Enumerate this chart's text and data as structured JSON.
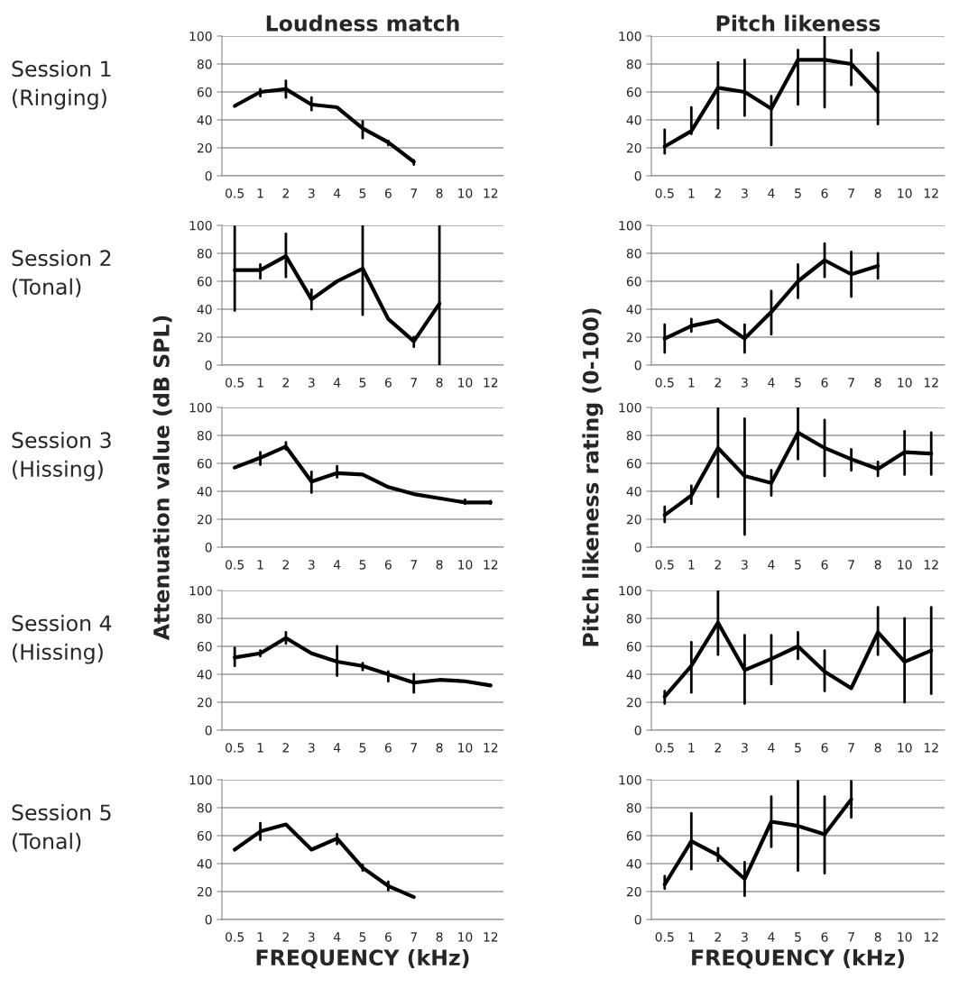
{
  "chart_data": [
    {
      "type": "line",
      "title": "Loudness match",
      "annotations": [
        "Session 1\n(Ringing)"
      ],
      "categories": [
        "0.5",
        "1",
        "2",
        "3",
        "4",
        "5",
        "6",
        "7",
        "8",
        "10",
        "12"
      ],
      "values": [
        50,
        60,
        62,
        51,
        49,
        34,
        24,
        10,
        null,
        null,
        null
      ],
      "errors": [
        null,
        [
          57,
          62
        ],
        [
          56,
          68
        ],
        [
          47,
          56
        ],
        null,
        [
          27,
          39
        ],
        [
          22,
          25
        ],
        [
          8,
          11
        ],
        null,
        null,
        null
      ],
      "ylim": [
        0,
        100
      ],
      "yticks": [
        0,
        20,
        40,
        60,
        80,
        100
      ],
      "grid": "y",
      "color": "#000000"
    },
    {
      "type": "line",
      "title": "Pitch likeness",
      "categories": [
        "0.5",
        "1",
        "2",
        "3",
        "4",
        "5",
        "6",
        "7",
        "8",
        "10",
        "12"
      ],
      "values": [
        21,
        32,
        63,
        60,
        48,
        83,
        83,
        80,
        60,
        null,
        null
      ],
      "errors": [
        [
          16,
          33
        ],
        [
          30,
          49
        ],
        [
          34,
          81
        ],
        [
          43,
          83
        ],
        [
          22,
          57
        ],
        [
          51,
          90
        ],
        [
          49,
          100
        ],
        [
          65,
          90
        ],
        [
          37,
          88
        ],
        null,
        null
      ],
      "ylim": [
        0,
        100
      ],
      "yticks": [
        0,
        20,
        40,
        60,
        80,
        100
      ],
      "grid": "y",
      "color": "#000000"
    },
    {
      "type": "line",
      "annotations": [
        "Session 2\n(Tonal)"
      ],
      "categories": [
        "0.5",
        "1",
        "2",
        "3",
        "4",
        "5",
        "6",
        "7",
        "8",
        "10",
        "12"
      ],
      "values": [
        68,
        68,
        78,
        47,
        60,
        69,
        33,
        17,
        44,
        null,
        null
      ],
      "errors": [
        [
          39,
          99
        ],
        [
          62,
          72
        ],
        [
          63,
          94
        ],
        [
          40,
          54
        ],
        null,
        [
          36,
          100
        ],
        null,
        [
          13,
          20
        ],
        [
          0,
          100
        ],
        null,
        null
      ],
      "ylim": [
        0,
        100
      ],
      "yticks": [
        0,
        20,
        40,
        60,
        80,
        100
      ],
      "grid": "y",
      "color": "#000000"
    },
    {
      "type": "line",
      "categories": [
        "0.5",
        "1",
        "2",
        "3",
        "4",
        "5",
        "6",
        "7",
        "8",
        "10",
        "12"
      ],
      "values": [
        19,
        28,
        32,
        19,
        38,
        60,
        75,
        65,
        71,
        null,
        null
      ],
      "errors": [
        [
          9,
          29
        ],
        [
          24,
          33
        ],
        null,
        [
          9,
          29
        ],
        [
          22,
          53
        ],
        [
          48,
          72
        ],
        [
          63,
          87
        ],
        [
          49,
          81
        ],
        [
          62,
          80
        ],
        null,
        null
      ],
      "ylim": [
        0,
        100
      ],
      "yticks": [
        0,
        20,
        40,
        60,
        80,
        100
      ],
      "grid": "y",
      "color": "#000000"
    },
    {
      "type": "line",
      "ylabel": "Attenuation value (dB SPL)",
      "annotations": [
        "Session 3\n(Hissing)"
      ],
      "categories": [
        "0.5",
        "1",
        "2",
        "3",
        "4",
        "5",
        "6",
        "7",
        "8",
        "10",
        "12"
      ],
      "values": [
        57,
        64,
        72,
        47,
        53,
        52,
        43,
        38,
        35,
        32,
        32
      ],
      "errors": [
        null,
        [
          59,
          68
        ],
        [
          70,
          75
        ],
        [
          39,
          54
        ],
        [
          50,
          58
        ],
        null,
        null,
        null,
        null,
        [
          31,
          34
        ],
        [
          31,
          33
        ]
      ],
      "ylim": [
        0,
        100
      ],
      "yticks": [
        0,
        20,
        40,
        60,
        80,
        100
      ],
      "grid": "y",
      "color": "#000000"
    },
    {
      "type": "line",
      "ylabel": "Pitch likeness rating (0-100)",
      "categories": [
        "0.5",
        "1",
        "2",
        "3",
        "4",
        "5",
        "6",
        "7",
        "8",
        "10",
        "12"
      ],
      "values": [
        23,
        37,
        71,
        51,
        46,
        82,
        71,
        63,
        56,
        68,
        67
      ],
      "errors": [
        [
          18,
          29
        ],
        [
          31,
          44
        ],
        [
          36,
          100
        ],
        [
          9,
          92
        ],
        [
          37,
          55
        ],
        [
          63,
          100
        ],
        [
          51,
          91
        ],
        [
          55,
          70
        ],
        [
          51,
          61
        ],
        [
          52,
          83
        ],
        [
          52,
          82
        ]
      ],
      "ylim": [
        0,
        100
      ],
      "yticks": [
        0,
        20,
        40,
        60,
        80,
        100
      ],
      "grid": "y",
      "color": "#000000"
    },
    {
      "type": "line",
      "annotations": [
        "Session 4\n(Hissing)"
      ],
      "categories": [
        "0.5",
        "1",
        "2",
        "3",
        "4",
        "5",
        "6",
        "7",
        "8",
        "10",
        "12"
      ],
      "values": [
        52,
        55,
        66,
        55,
        49,
        46,
        40,
        34,
        36,
        35,
        32
      ],
      "errors": [
        [
          46,
          59
        ],
        [
          53,
          57
        ],
        [
          62,
          70
        ],
        null,
        [
          39,
          60
        ],
        [
          43,
          48
        ],
        [
          35,
          42
        ],
        [
          27,
          40
        ],
        null,
        null,
        null
      ],
      "ylim": [
        0,
        100
      ],
      "yticks": [
        0,
        20,
        40,
        60,
        80,
        100
      ],
      "grid": "y",
      "color": "#000000"
    },
    {
      "type": "line",
      "categories": [
        "0.5",
        "1",
        "2",
        "3",
        "4",
        "5",
        "6",
        "7",
        "8",
        "10",
        "12"
      ],
      "values": [
        24,
        46,
        77,
        43,
        51,
        60,
        42,
        30,
        70,
        49,
        57
      ],
      "errors": [
        [
          19,
          28
        ],
        [
          27,
          63
        ],
        [
          54,
          100
        ],
        [
          19,
          68
        ],
        [
          33,
          68
        ],
        [
          51,
          70
        ],
        [
          28,
          57
        ],
        null,
        [
          54,
          88
        ],
        [
          20,
          80
        ],
        [
          26,
          88
        ]
      ],
      "ylim": [
        0,
        100
      ],
      "yticks": [
        0,
        20,
        40,
        60,
        80,
        100
      ],
      "grid": "y",
      "color": "#000000"
    },
    {
      "type": "line",
      "xlabel": "FREQUENCY (kHz)",
      "annotations": [
        "Session 5\n(Tonal)"
      ],
      "categories": [
        "0.5",
        "1",
        "2",
        "3",
        "4",
        "5",
        "6",
        "7",
        "8",
        "10",
        "12"
      ],
      "values": [
        50,
        63,
        68,
        50,
        58,
        37,
        24,
        16,
        null,
        null,
        null
      ],
      "errors": [
        null,
        [
          57,
          69
        ],
        null,
        null,
        [
          54,
          61
        ],
        [
          35,
          39
        ],
        [
          21,
          27
        ],
        null,
        null,
        null,
        null
      ],
      "ylim": [
        0,
        100
      ],
      "yticks": [
        0,
        20,
        40,
        60,
        80,
        100
      ],
      "grid": "y",
      "color": "#000000"
    },
    {
      "type": "line",
      "xlabel": "FREQUENCY (kHz)",
      "categories": [
        "0.5",
        "1",
        "2",
        "3",
        "4",
        "5",
        "6",
        "7",
        "8",
        "10",
        "12"
      ],
      "values": [
        25,
        56,
        46,
        29,
        70,
        67,
        61,
        86,
        null,
        null,
        null
      ],
      "errors": [
        [
          22,
          31
        ],
        [
          36,
          76
        ],
        [
          42,
          51
        ],
        [
          17,
          41
        ],
        [
          52,
          88
        ],
        [
          35,
          99
        ],
        [
          33,
          88
        ],
        [
          73,
          99
        ],
        null,
        null,
        null
      ],
      "ylim": [
        0,
        100
      ],
      "yticks": [
        0,
        20,
        40,
        60,
        80,
        100
      ],
      "grid": "y",
      "color": "#000000"
    }
  ]
}
